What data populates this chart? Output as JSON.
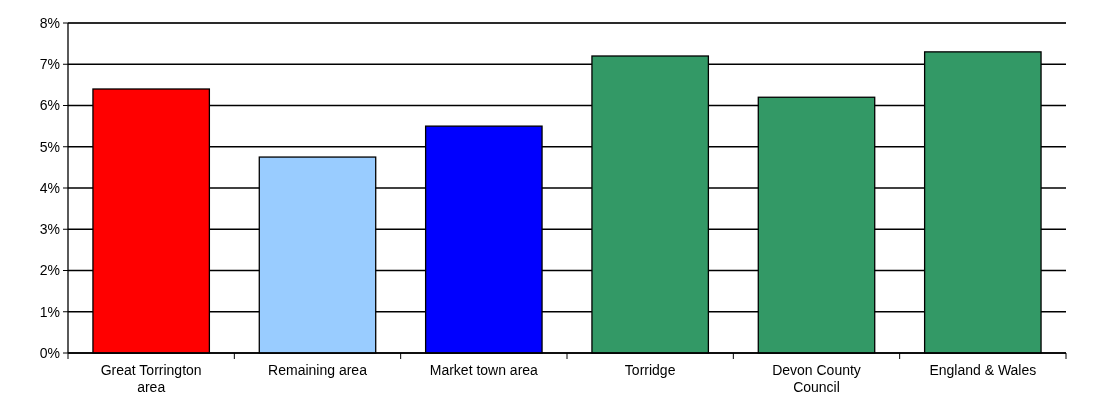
{
  "chart_data": {
    "type": "bar",
    "categories": [
      "Great Torrington area",
      "Remaining area",
      "Market town area",
      "Torridge",
      "Devon County Council",
      "England & Wales"
    ],
    "values": [
      6.4,
      4.75,
      5.5,
      7.2,
      6.2,
      7.3
    ],
    "colors": [
      "#ff0000",
      "#99ccff",
      "#0000ff",
      "#339966",
      "#339966",
      "#339966"
    ],
    "ylim": [
      0,
      8
    ],
    "yticks": [
      {
        "value": 0,
        "label": "0%"
      },
      {
        "value": 1,
        "label": "1%"
      },
      {
        "value": 2,
        "label": "2%"
      },
      {
        "value": 3,
        "label": "3%"
      },
      {
        "value": 4,
        "label": "4%"
      },
      {
        "value": 5,
        "label": "5%"
      },
      {
        "value": 6,
        "label": "6%"
      },
      {
        "value": 7,
        "label": "7%"
      },
      {
        "value": 8,
        "label": "8%"
      }
    ],
    "grid": "y"
  }
}
